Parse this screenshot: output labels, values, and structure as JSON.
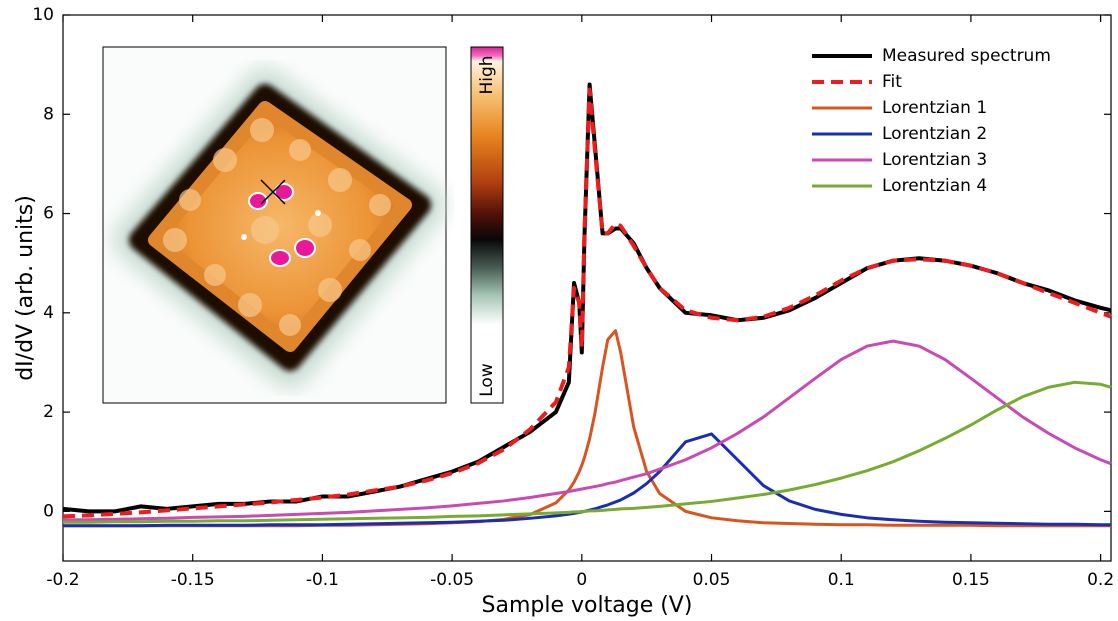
{
  "chart_data": {
    "type": "line",
    "xlabel": "Sample voltage (V)",
    "ylabel": "dI/dV (arb. units)",
    "xlim": [
      -0.2,
      0.204
    ],
    "ylim": [
      -1,
      10
    ],
    "xticks": [
      -0.2,
      -0.15,
      -0.1,
      -0.05,
      0,
      0.05,
      0.1,
      0.15,
      0.2
    ],
    "yticks": [
      0,
      2,
      4,
      6,
      8,
      10
    ],
    "legend": "upper right",
    "grid": false,
    "colorbar_labels": [
      "High",
      "Low"
    ],
    "x": [
      -0.2,
      -0.19,
      -0.18,
      -0.17,
      -0.16,
      -0.15,
      -0.14,
      -0.13,
      -0.12,
      -0.11,
      -0.1,
      -0.09,
      -0.08,
      -0.07,
      -0.06,
      -0.05,
      -0.04,
      -0.03,
      -0.02,
      -0.01,
      -0.005,
      -0.003,
      -0.001,
      0,
      0.001,
      0.003,
      0.005,
      0.008,
      0.01,
      0.013,
      0.015,
      0.02,
      0.025,
      0.03,
      0.04,
      0.05,
      0.06,
      0.07,
      0.08,
      0.09,
      0.1,
      0.11,
      0.12,
      0.13,
      0.14,
      0.15,
      0.16,
      0.17,
      0.18,
      0.19,
      0.2,
      0.204
    ],
    "series": [
      {
        "name": "Measured spectrum",
        "color": "#000000",
        "linestyle": "solid",
        "values": [
          0.05,
          0.0,
          0.0,
          0.1,
          0.05,
          0.1,
          0.15,
          0.15,
          0.2,
          0.2,
          0.3,
          0.3,
          0.4,
          0.5,
          0.65,
          0.8,
          1.0,
          1.3,
          1.6,
          2.0,
          2.6,
          4.6,
          4.2,
          3.2,
          5.5,
          8.6,
          7.4,
          5.6,
          5.6,
          5.7,
          5.7,
          5.4,
          4.9,
          4.5,
          4.0,
          3.95,
          3.85,
          3.9,
          4.05,
          4.3,
          4.6,
          4.9,
          5.05,
          5.1,
          5.05,
          4.95,
          4.8,
          4.6,
          4.45,
          4.25,
          4.1,
          4.05
        ]
      },
      {
        "name": "Fit",
        "color": "#ee1c1c",
        "linestyle": "dashed",
        "values": [
          -0.1,
          -0.08,
          -0.05,
          -0.02,
          0.02,
          0.06,
          0.1,
          0.14,
          0.18,
          0.23,
          0.28,
          0.34,
          0.42,
          0.5,
          0.62,
          0.77,
          0.97,
          1.25,
          1.65,
          2.2,
          2.9,
          4.5,
          4.2,
          3.3,
          5.6,
          8.5,
          7.3,
          5.6,
          5.6,
          5.8,
          5.75,
          5.35,
          4.9,
          4.5,
          4.05,
          3.9,
          3.85,
          3.92,
          4.1,
          4.35,
          4.65,
          4.9,
          5.05,
          5.08,
          5.05,
          4.95,
          4.8,
          4.6,
          4.4,
          4.2,
          4.0,
          3.92
        ]
      },
      {
        "name": "Lorentzian 1",
        "color": "#d9541e",
        "linestyle": "solid",
        "values": [
          -0.29,
          -0.29,
          -0.29,
          -0.29,
          -0.29,
          -0.29,
          -0.29,
          -0.29,
          -0.29,
          -0.29,
          -0.28,
          -0.28,
          -0.27,
          -0.26,
          -0.25,
          -0.23,
          -0.21,
          -0.16,
          -0.065,
          0.17,
          0.43,
          0.59,
          0.8,
          0.93,
          1.08,
          1.46,
          1.96,
          2.9,
          3.46,
          3.64,
          3.2,
          1.7,
          0.8,
          0.36,
          0.0,
          -0.13,
          -0.19,
          -0.23,
          -0.245,
          -0.26,
          -0.27,
          -0.27,
          -0.28,
          -0.28,
          -0.28,
          -0.28,
          -0.29,
          -0.29,
          -0.29,
          -0.29,
          -0.29,
          -0.29
        ]
      },
      {
        "name": "Lorentzian 2",
        "color": "#1a2fb0",
        "linestyle": "solid",
        "values": [
          -0.29,
          -0.29,
          -0.29,
          -0.29,
          -0.28,
          -0.28,
          -0.28,
          -0.28,
          -0.27,
          -0.27,
          -0.27,
          -0.26,
          -0.25,
          -0.24,
          -0.23,
          -0.22,
          -0.2,
          -0.18,
          -0.14,
          -0.09,
          -0.055,
          -0.04,
          -0.02,
          -0.01,
          0.0,
          0.025,
          0.05,
          0.1,
          0.13,
          0.19,
          0.23,
          0.37,
          0.56,
          0.8,
          1.4,
          1.56,
          1.04,
          0.52,
          0.21,
          0.04,
          -0.06,
          -0.13,
          -0.17,
          -0.2,
          -0.22,
          -0.23,
          -0.24,
          -0.25,
          -0.26,
          -0.26,
          -0.27,
          -0.27
        ]
      },
      {
        "name": "Lorentzian 3",
        "color": "#c84bb4",
        "linestyle": "solid",
        "values": [
          -0.17,
          -0.17,
          -0.16,
          -0.15,
          -0.14,
          -0.12,
          -0.11,
          -0.1,
          -0.08,
          -0.06,
          -0.04,
          -0.02,
          0.01,
          0.04,
          0.07,
          0.11,
          0.16,
          0.21,
          0.28,
          0.36,
          0.4,
          0.42,
          0.44,
          0.45,
          0.46,
          0.48,
          0.5,
          0.53,
          0.56,
          0.59,
          0.62,
          0.69,
          0.76,
          0.85,
          1.04,
          1.28,
          1.57,
          1.9,
          2.29,
          2.68,
          3.06,
          3.33,
          3.43,
          3.33,
          3.06,
          2.68,
          2.29,
          1.9,
          1.57,
          1.28,
          1.04,
          0.96
        ]
      },
      {
        "name": "Lorentzian 4",
        "color": "#77ac30",
        "linestyle": "solid",
        "values": [
          -0.22,
          -0.22,
          -0.21,
          -0.21,
          -0.2,
          -0.2,
          -0.19,
          -0.19,
          -0.18,
          -0.17,
          -0.16,
          -0.15,
          -0.14,
          -0.13,
          -0.12,
          -0.1,
          -0.09,
          -0.07,
          -0.05,
          -0.03,
          -0.02,
          -0.01,
          -0.01,
          0.0,
          0.0,
          0.01,
          0.01,
          0.02,
          0.03,
          0.04,
          0.05,
          0.06,
          0.08,
          0.1,
          0.15,
          0.2,
          0.27,
          0.34,
          0.43,
          0.54,
          0.67,
          0.82,
          1.0,
          1.22,
          1.47,
          1.74,
          2.04,
          2.31,
          2.5,
          2.6,
          2.56,
          2.5
        ]
      }
    ]
  }
}
